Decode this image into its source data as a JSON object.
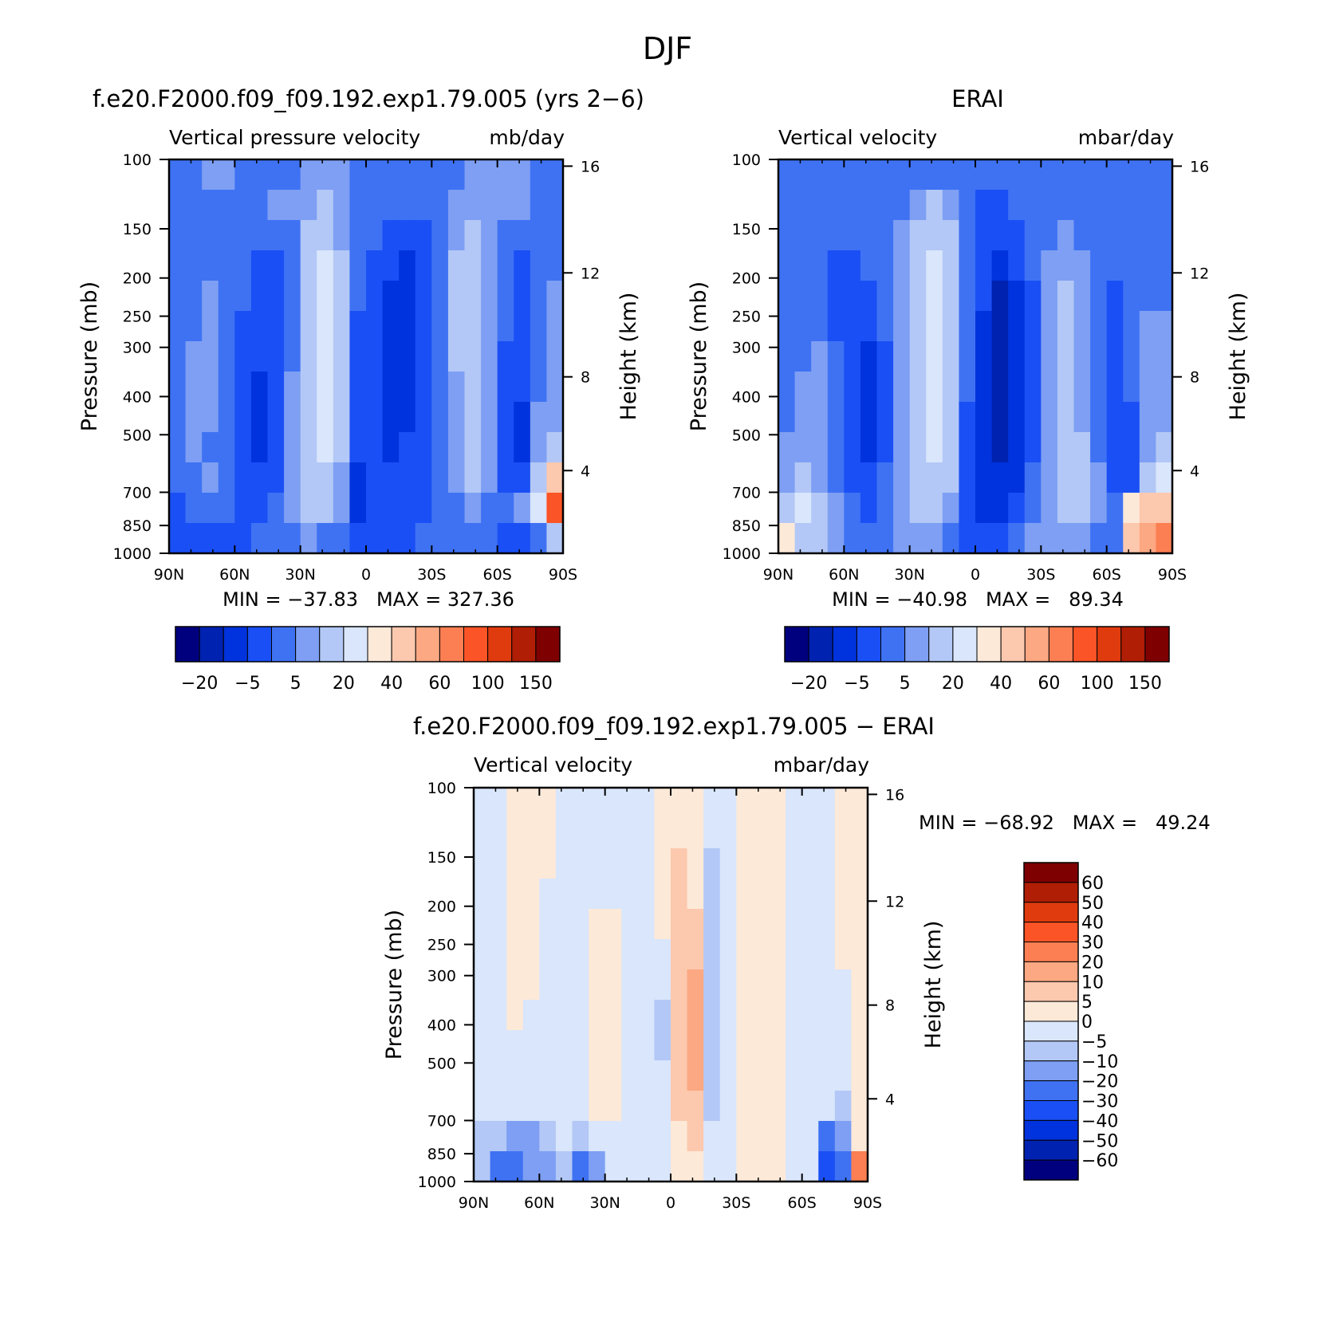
{
  "title": "DJF",
  "palettes": {
    "abs": [
      "#00007f",
      "#0022b0",
      "#0033dd",
      "#1a4ff5",
      "#3f72f3",
      "#7e9ff3",
      "#b3c8f6",
      "#d9e6fb",
      "#fde9d8",
      "#fcc8ae",
      "#fca882",
      "#fb7f52",
      "#fb5426",
      "#e03b0e",
      "#b01e05",
      "#7f0000"
    ],
    "diff": [
      "#00007f",
      "#0022b0",
      "#0033dd",
      "#1a4ff5",
      "#3f72f3",
      "#7e9ff3",
      "#b3c8f6",
      "#d9e6fb",
      "#fde9d8",
      "#fcc8ae",
      "#fca882",
      "#fb7f52",
      "#fb5426",
      "#e03b0e",
      "#b01e05",
      "#7f0000"
    ]
  },
  "chart_data": [
    {
      "type": "heatmap",
      "id": "model",
      "title": "f.e20.F2000.f09_f09.192.exp1.79.005 (yrs 2−6)",
      "left_label": "Vertical pressure velocity",
      "right_label": "mb/day",
      "ylabel": "Pressure (mb)",
      "y2label": "Height (km)",
      "minmax": "MIN = −37.83   MAX = 327.36",
      "x_ticks": [
        "90N",
        "60N",
        "30N",
        "0",
        "30S",
        "60S",
        "90S"
      ],
      "y_ticks": [
        "100",
        "150",
        "200",
        "250",
        "300",
        "400",
        "500",
        "700",
        "850",
        "1000"
      ],
      "y2_ticks": [
        "16",
        "12",
        "8",
        "4"
      ],
      "colorbar_labels": [
        "−20",
        "−5",
        "5",
        "20",
        "40",
        "60",
        "100",
        "150"
      ],
      "field": [
        [
          4,
          4,
          5,
          5,
          4,
          4,
          4,
          4,
          5,
          5,
          5,
          4,
          4,
          4,
          4,
          4,
          4,
          4,
          5,
          5,
          5,
          5,
          4,
          4
        ],
        [
          4,
          4,
          4,
          4,
          4,
          4,
          5,
          5,
          5,
          6,
          5,
          4,
          4,
          4,
          4,
          4,
          4,
          5,
          5,
          5,
          5,
          5,
          4,
          4
        ],
        [
          4,
          4,
          4,
          4,
          4,
          4,
          4,
          4,
          6,
          6,
          5,
          4,
          4,
          3,
          3,
          3,
          4,
          5,
          6,
          5,
          4,
          4,
          4,
          4
        ],
        [
          4,
          4,
          4,
          4,
          4,
          3,
          3,
          4,
          6,
          7,
          6,
          4,
          3,
          3,
          2,
          3,
          4,
          6,
          6,
          5,
          4,
          3,
          4,
          4
        ],
        [
          4,
          4,
          5,
          4,
          4,
          3,
          3,
          4,
          6,
          7,
          6,
          4,
          3,
          2,
          2,
          3,
          4,
          6,
          6,
          5,
          4,
          3,
          4,
          5
        ],
        [
          4,
          4,
          5,
          4,
          3,
          3,
          3,
          4,
          6,
          7,
          6,
          3,
          3,
          2,
          2,
          3,
          4,
          6,
          6,
          5,
          4,
          3,
          4,
          5
        ],
        [
          4,
          5,
          5,
          4,
          3,
          3,
          3,
          4,
          6,
          7,
          6,
          3,
          3,
          2,
          2,
          3,
          4,
          6,
          6,
          5,
          3,
          3,
          4,
          5
        ],
        [
          4,
          5,
          5,
          4,
          3,
          2,
          3,
          5,
          6,
          7,
          6,
          3,
          3,
          2,
          2,
          3,
          4,
          5,
          6,
          5,
          3,
          3,
          4,
          5
        ],
        [
          4,
          5,
          5,
          4,
          3,
          2,
          3,
          5,
          6,
          7,
          6,
          3,
          3,
          2,
          2,
          3,
          4,
          5,
          6,
          5,
          3,
          2,
          5,
          5
        ],
        [
          4,
          5,
          4,
          4,
          3,
          2,
          3,
          5,
          6,
          7,
          6,
          3,
          3,
          2,
          3,
          3,
          4,
          5,
          6,
          5,
          3,
          2,
          5,
          6
        ],
        [
          4,
          4,
          5,
          4,
          3,
          3,
          3,
          5,
          6,
          6,
          5,
          2,
          3,
          3,
          3,
          3,
          4,
          5,
          6,
          5,
          3,
          3,
          6,
          9
        ],
        [
          3,
          4,
          4,
          4,
          3,
          3,
          4,
          5,
          6,
          6,
          5,
          2,
          3,
          3,
          3,
          3,
          4,
          4,
          5,
          4,
          4,
          5,
          7,
          12
        ],
        [
          3,
          3,
          3,
          3,
          3,
          4,
          4,
          4,
          5,
          4,
          4,
          3,
          3,
          3,
          3,
          4,
          4,
          4,
          4,
          4,
          3,
          3,
          4,
          6
        ]
      ]
    },
    {
      "type": "heatmap",
      "id": "obs",
      "title": "ERAI",
      "left_label": "Vertical velocity",
      "right_label": "mbar/day",
      "ylabel": "Pressure (mb)",
      "y2label": "Height (km)",
      "minmax": "MIN = −40.98   MAX =   89.34",
      "x_ticks": [
        "90N",
        "60N",
        "30N",
        "0",
        "30S",
        "60S",
        "90S"
      ],
      "y_ticks": [
        "100",
        "150",
        "200",
        "250",
        "300",
        "400",
        "500",
        "700",
        "850",
        "1000"
      ],
      "y2_ticks": [
        "16",
        "12",
        "8",
        "4"
      ],
      "colorbar_labels": [
        "−20",
        "−5",
        "5",
        "20",
        "40",
        "60",
        "100",
        "150"
      ],
      "field": [
        [
          4,
          4,
          4,
          4,
          4,
          4,
          4,
          4,
          4,
          4,
          4,
          4,
          4,
          4,
          4,
          4,
          4,
          4,
          4,
          4,
          4,
          4,
          4,
          4
        ],
        [
          4,
          4,
          4,
          4,
          4,
          4,
          4,
          4,
          5,
          6,
          5,
          4,
          3,
          3,
          4,
          4,
          4,
          4,
          4,
          4,
          4,
          4,
          4,
          4
        ],
        [
          4,
          4,
          4,
          4,
          4,
          4,
          4,
          5,
          6,
          6,
          6,
          4,
          3,
          3,
          3,
          4,
          4,
          5,
          4,
          4,
          4,
          4,
          4,
          4
        ],
        [
          4,
          4,
          4,
          3,
          3,
          4,
          4,
          5,
          6,
          7,
          6,
          4,
          3,
          2,
          3,
          4,
          5,
          5,
          5,
          4,
          4,
          4,
          4,
          4
        ],
        [
          4,
          4,
          4,
          3,
          3,
          3,
          4,
          5,
          6,
          7,
          6,
          4,
          3,
          1,
          2,
          3,
          5,
          6,
          5,
          4,
          3,
          4,
          4,
          4
        ],
        [
          4,
          4,
          4,
          3,
          3,
          3,
          4,
          5,
          6,
          7,
          6,
          4,
          2,
          1,
          2,
          3,
          5,
          6,
          5,
          4,
          3,
          4,
          5,
          5
        ],
        [
          4,
          4,
          5,
          4,
          3,
          2,
          3,
          5,
          6,
          7,
          6,
          4,
          2,
          1,
          2,
          3,
          5,
          6,
          5,
          4,
          3,
          4,
          5,
          5
        ],
        [
          4,
          5,
          5,
          4,
          3,
          2,
          3,
          5,
          6,
          7,
          6,
          4,
          2,
          1,
          2,
          3,
          5,
          6,
          5,
          4,
          3,
          4,
          5,
          5
        ],
        [
          4,
          5,
          5,
          4,
          3,
          2,
          3,
          5,
          6,
          7,
          6,
          3,
          2,
          1,
          2,
          3,
          5,
          6,
          5,
          4,
          3,
          3,
          5,
          5
        ],
        [
          5,
          5,
          5,
          4,
          3,
          2,
          3,
          5,
          6,
          7,
          6,
          3,
          2,
          1,
          2,
          3,
          5,
          6,
          6,
          4,
          3,
          3,
          5,
          6
        ],
        [
          5,
          6,
          5,
          4,
          3,
          3,
          4,
          5,
          6,
          6,
          6,
          3,
          2,
          2,
          2,
          4,
          5,
          6,
          6,
          5,
          3,
          3,
          6,
          7
        ],
        [
          6,
          7,
          6,
          5,
          4,
          3,
          4,
          5,
          6,
          6,
          5,
          3,
          2,
          2,
          3,
          4,
          5,
          6,
          6,
          5,
          4,
          8,
          9,
          9
        ],
        [
          8,
          6,
          6,
          5,
          4,
          4,
          4,
          5,
          5,
          5,
          4,
          3,
          3,
          3,
          4,
          5,
          5,
          5,
          5,
          4,
          4,
          9,
          10,
          11
        ]
      ]
    },
    {
      "type": "heatmap",
      "id": "diff",
      "title": "f.e20.F2000.f09_f09.192.exp1.79.005 − ERAI",
      "left_label": "Vertical velocity",
      "right_label": "mbar/day",
      "ylabel": "Pressure (mb)",
      "y2label": "Height (km)",
      "minmax": "MIN = −68.92   MAX =   49.24",
      "x_ticks": [
        "90N",
        "60N",
        "30N",
        "0",
        "30S",
        "60S",
        "90S"
      ],
      "y_ticks": [
        "100",
        "150",
        "200",
        "250",
        "300",
        "400",
        "500",
        "700",
        "850",
        "1000"
      ],
      "y2_ticks": [
        "16",
        "12",
        "8",
        "4"
      ],
      "colorbar_labels": [
        "60",
        "50",
        "40",
        "30",
        "20",
        "10",
        "5",
        "0",
        "−5",
        "−10",
        "−20",
        "−30",
        "−40",
        "−50",
        "−60"
      ],
      "field": [
        [
          7,
          7,
          8,
          8,
          8,
          7,
          7,
          7,
          7,
          7,
          7,
          8,
          8,
          8,
          7,
          7,
          8,
          8,
          8,
          7,
          7,
          7,
          8,
          8
        ],
        [
          7,
          7,
          8,
          8,
          8,
          7,
          7,
          7,
          7,
          7,
          7,
          8,
          8,
          8,
          7,
          7,
          8,
          8,
          8,
          7,
          7,
          7,
          8,
          8
        ],
        [
          7,
          7,
          8,
          8,
          8,
          7,
          7,
          7,
          7,
          7,
          7,
          8,
          9,
          8,
          6,
          7,
          8,
          8,
          8,
          7,
          7,
          7,
          8,
          8
        ],
        [
          7,
          7,
          8,
          8,
          7,
          7,
          7,
          7,
          7,
          7,
          7,
          8,
          9,
          8,
          6,
          7,
          8,
          8,
          8,
          7,
          7,
          7,
          8,
          8
        ],
        [
          7,
          7,
          8,
          8,
          7,
          7,
          7,
          8,
          8,
          7,
          7,
          8,
          9,
          9,
          6,
          7,
          8,
          8,
          8,
          7,
          7,
          7,
          8,
          8
        ],
        [
          7,
          7,
          8,
          8,
          7,
          7,
          7,
          8,
          8,
          7,
          7,
          7,
          9,
          9,
          6,
          7,
          8,
          8,
          8,
          7,
          7,
          7,
          8,
          8
        ],
        [
          7,
          7,
          8,
          8,
          7,
          7,
          7,
          8,
          8,
          7,
          7,
          7,
          9,
          10,
          6,
          7,
          8,
          8,
          8,
          7,
          7,
          7,
          7,
          8
        ],
        [
          7,
          7,
          8,
          7,
          7,
          7,
          7,
          8,
          8,
          7,
          7,
          6,
          9,
          10,
          6,
          7,
          8,
          8,
          8,
          7,
          7,
          7,
          7,
          8
        ],
        [
          7,
          7,
          7,
          7,
          7,
          7,
          7,
          8,
          8,
          7,
          7,
          6,
          9,
          10,
          6,
          7,
          8,
          8,
          8,
          7,
          7,
          7,
          7,
          8
        ],
        [
          7,
          7,
          7,
          7,
          7,
          7,
          7,
          8,
          8,
          7,
          7,
          7,
          9,
          10,
          6,
          7,
          8,
          8,
          8,
          7,
          7,
          7,
          7,
          8
        ],
        [
          7,
          7,
          7,
          7,
          7,
          7,
          7,
          8,
          8,
          7,
          7,
          7,
          9,
          9,
          6,
          7,
          8,
          8,
          8,
          7,
          7,
          7,
          6,
          8
        ],
        [
          6,
          6,
          5,
          5,
          6,
          7,
          6,
          7,
          7,
          7,
          7,
          7,
          8,
          9,
          7,
          7,
          8,
          8,
          8,
          7,
          7,
          4,
          5,
          8
        ],
        [
          6,
          4,
          4,
          5,
          5,
          6,
          4,
          5,
          7,
          7,
          7,
          7,
          8,
          8,
          7,
          7,
          8,
          8,
          8,
          7,
          7,
          3,
          4,
          11
        ]
      ]
    }
  ]
}
